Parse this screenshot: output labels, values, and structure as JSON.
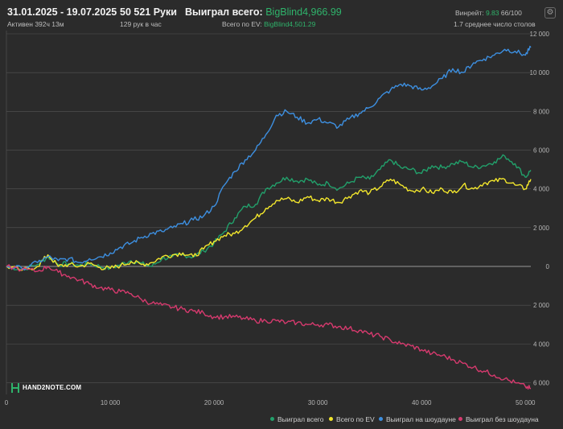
{
  "header": {
    "date_range": "31.01.2025 - 19.07.2025",
    "active": "Активен 392ч 13м",
    "hands": "50 521 Руки",
    "hands_per_hour": "129 рук в час",
    "won_total_label": "Выиграл всего:",
    "won_total_value": "BigBlind4,966.99",
    "ev_label": "Всего по EV:",
    "ev_value": "BigBlind4,501.29",
    "winrate_label": "Винрейт:",
    "winrate_value": "9.83",
    "winrate_count": "66/100",
    "avg_tables": "1.7 среднее число столов"
  },
  "logo": {
    "text": "HAND2NOTE.COM"
  },
  "colors": {
    "background": "#2b2b2b",
    "won_total": "#22a06b",
    "ev": "#f2e62c",
    "showdown": "#3d8fe0",
    "no_showdown": "#d63a6e",
    "grid": "#555555",
    "zero_line": "#9a9a9a"
  },
  "chart_data": {
    "type": "line",
    "title": "",
    "xlabel": "",
    "ylabel": "",
    "xlim": [
      0,
      50521
    ],
    "ylim": [
      -6600,
      12000
    ],
    "x_ticks": [
      0,
      10000,
      20000,
      30000,
      40000,
      50000
    ],
    "x_tick_labels": [
      "0",
      "10 000",
      "20 000",
      "30 000",
      "40 000",
      "50 000"
    ],
    "y_ticks": [
      12000,
      10000,
      8000,
      6000,
      4000,
      2000,
      0,
      -2000,
      -4000,
      -6000
    ],
    "y_tick_labels": [
      "12 000",
      "10 000",
      "8 000",
      "6 000",
      "4 000",
      "2 000",
      "0",
      "2 000",
      "4 000",
      "6 000"
    ],
    "grid": true,
    "legend_position": "bottom-right",
    "series": [
      {
        "name": "Выиграл всего",
        "color": "#22a06b",
        "x": [
          0,
          1500,
          3000,
          4000,
          5000,
          6000,
          7000,
          8000,
          9000,
          10000,
          11000,
          12000,
          13000,
          14000,
          15000,
          16000,
          17000,
          18000,
          19000,
          20000,
          21000,
          22000,
          23000,
          24000,
          25000,
          26000,
          27000,
          28000,
          29000,
          30000,
          31000,
          32000,
          33000,
          34000,
          35000,
          36000,
          37000,
          38000,
          39000,
          40000,
          41000,
          42000,
          43000,
          44000,
          45000,
          46000,
          47000,
          48000,
          49000,
          50000,
          50521
        ],
        "values": [
          0,
          -150,
          100,
          500,
          100,
          150,
          50,
          150,
          0,
          -100,
          100,
          300,
          150,
          0,
          400,
          500,
          600,
          500,
          800,
          1200,
          1800,
          2500,
          3100,
          3200,
          4000,
          4300,
          4600,
          4400,
          4500,
          4200,
          4300,
          4000,
          4300,
          4600,
          4500,
          5000,
          5500,
          5100,
          5000,
          4800,
          5200,
          5100,
          5300,
          5400,
          5100,
          5200,
          5400,
          5700,
          5300,
          4600,
          4967
        ]
      },
      {
        "name": "Всего по EV",
        "color": "#f2e62c",
        "x": [
          0,
          1500,
          3000,
          4000,
          5000,
          6000,
          7000,
          8000,
          9000,
          10000,
          11000,
          12000,
          13000,
          14000,
          15000,
          16000,
          17000,
          18000,
          19000,
          20000,
          21000,
          22000,
          23000,
          24000,
          25000,
          26000,
          27000,
          28000,
          29000,
          30000,
          31000,
          32000,
          33000,
          34000,
          35000,
          36000,
          37000,
          38000,
          39000,
          40000,
          41000,
          42000,
          43000,
          44000,
          45000,
          46000,
          47000,
          48000,
          49000,
          50000,
          50521
        ],
        "values": [
          0,
          -200,
          0,
          600,
          0,
          100,
          0,
          150,
          -50,
          -100,
          50,
          250,
          100,
          200,
          500,
          600,
          700,
          500,
          900,
          1300,
          1600,
          1700,
          2100,
          2500,
          3000,
          3400,
          3500,
          3300,
          3600,
          3400,
          3500,
          3300,
          3600,
          3900,
          3800,
          4100,
          4500,
          4200,
          3900,
          4000,
          3800,
          4000,
          3800,
          4200,
          4000,
          4300,
          4400,
          4500,
          4200,
          4000,
          4501
        ]
      },
      {
        "name": "Выиграл на шоудауне",
        "color": "#3d8fe0",
        "x": [
          0,
          1500,
          3000,
          4000,
          5000,
          6000,
          7000,
          8000,
          9000,
          10000,
          11000,
          12000,
          13000,
          14000,
          15000,
          16000,
          17000,
          18000,
          19000,
          20000,
          21000,
          22000,
          23000,
          24000,
          25000,
          26000,
          27000,
          28000,
          29000,
          30000,
          31000,
          32000,
          33000,
          34000,
          35000,
          36000,
          37000,
          38000,
          39000,
          40000,
          41000,
          42000,
          43000,
          44000,
          45000,
          46000,
          47000,
          48000,
          49000,
          50000,
          50521
        ],
        "values": [
          0,
          -100,
          200,
          500,
          300,
          400,
          200,
          400,
          500,
          700,
          1000,
          1200,
          1500,
          1700,
          1800,
          2000,
          2200,
          2400,
          2600,
          3100,
          4200,
          4900,
          5500,
          6000,
          6800,
          7800,
          8000,
          7700,
          7400,
          7600,
          7400,
          7200,
          7600,
          7900,
          8200,
          8700,
          9100,
          9400,
          9300,
          9100,
          9300,
          9700,
          10200,
          10000,
          10500,
          10700,
          10900,
          11200,
          11100,
          10900,
          11300
        ]
      },
      {
        "name": "Выиграл без шоудауна",
        "color": "#d63a6e",
        "x": [
          0,
          1500,
          3000,
          4000,
          5000,
          6000,
          7000,
          8000,
          9000,
          10000,
          11000,
          12000,
          13000,
          14000,
          15000,
          16000,
          17000,
          18000,
          19000,
          20000,
          21000,
          22000,
          23000,
          24000,
          25000,
          26000,
          27000,
          28000,
          29000,
          30000,
          31000,
          32000,
          33000,
          34000,
          35000,
          36000,
          37000,
          38000,
          39000,
          40000,
          41000,
          42000,
          43000,
          44000,
          45000,
          46000,
          47000,
          48000,
          49000,
          50000,
          50521
        ],
        "values": [
          0,
          -150,
          -250,
          0,
          -300,
          -500,
          -700,
          -900,
          -1100,
          -1200,
          -1300,
          -1400,
          -1700,
          -1900,
          -2000,
          -2100,
          -2200,
          -2300,
          -2400,
          -2600,
          -2600,
          -2600,
          -2700,
          -2800,
          -2800,
          -2800,
          -2900,
          -2900,
          -3000,
          -3000,
          -3000,
          -3100,
          -3200,
          -3300,
          -3500,
          -3600,
          -3800,
          -4000,
          -4100,
          -4300,
          -4500,
          -4600,
          -4800,
          -5000,
          -5200,
          -5400,
          -5600,
          -5800,
          -6000,
          -6200,
          -6300
        ]
      }
    ]
  }
}
